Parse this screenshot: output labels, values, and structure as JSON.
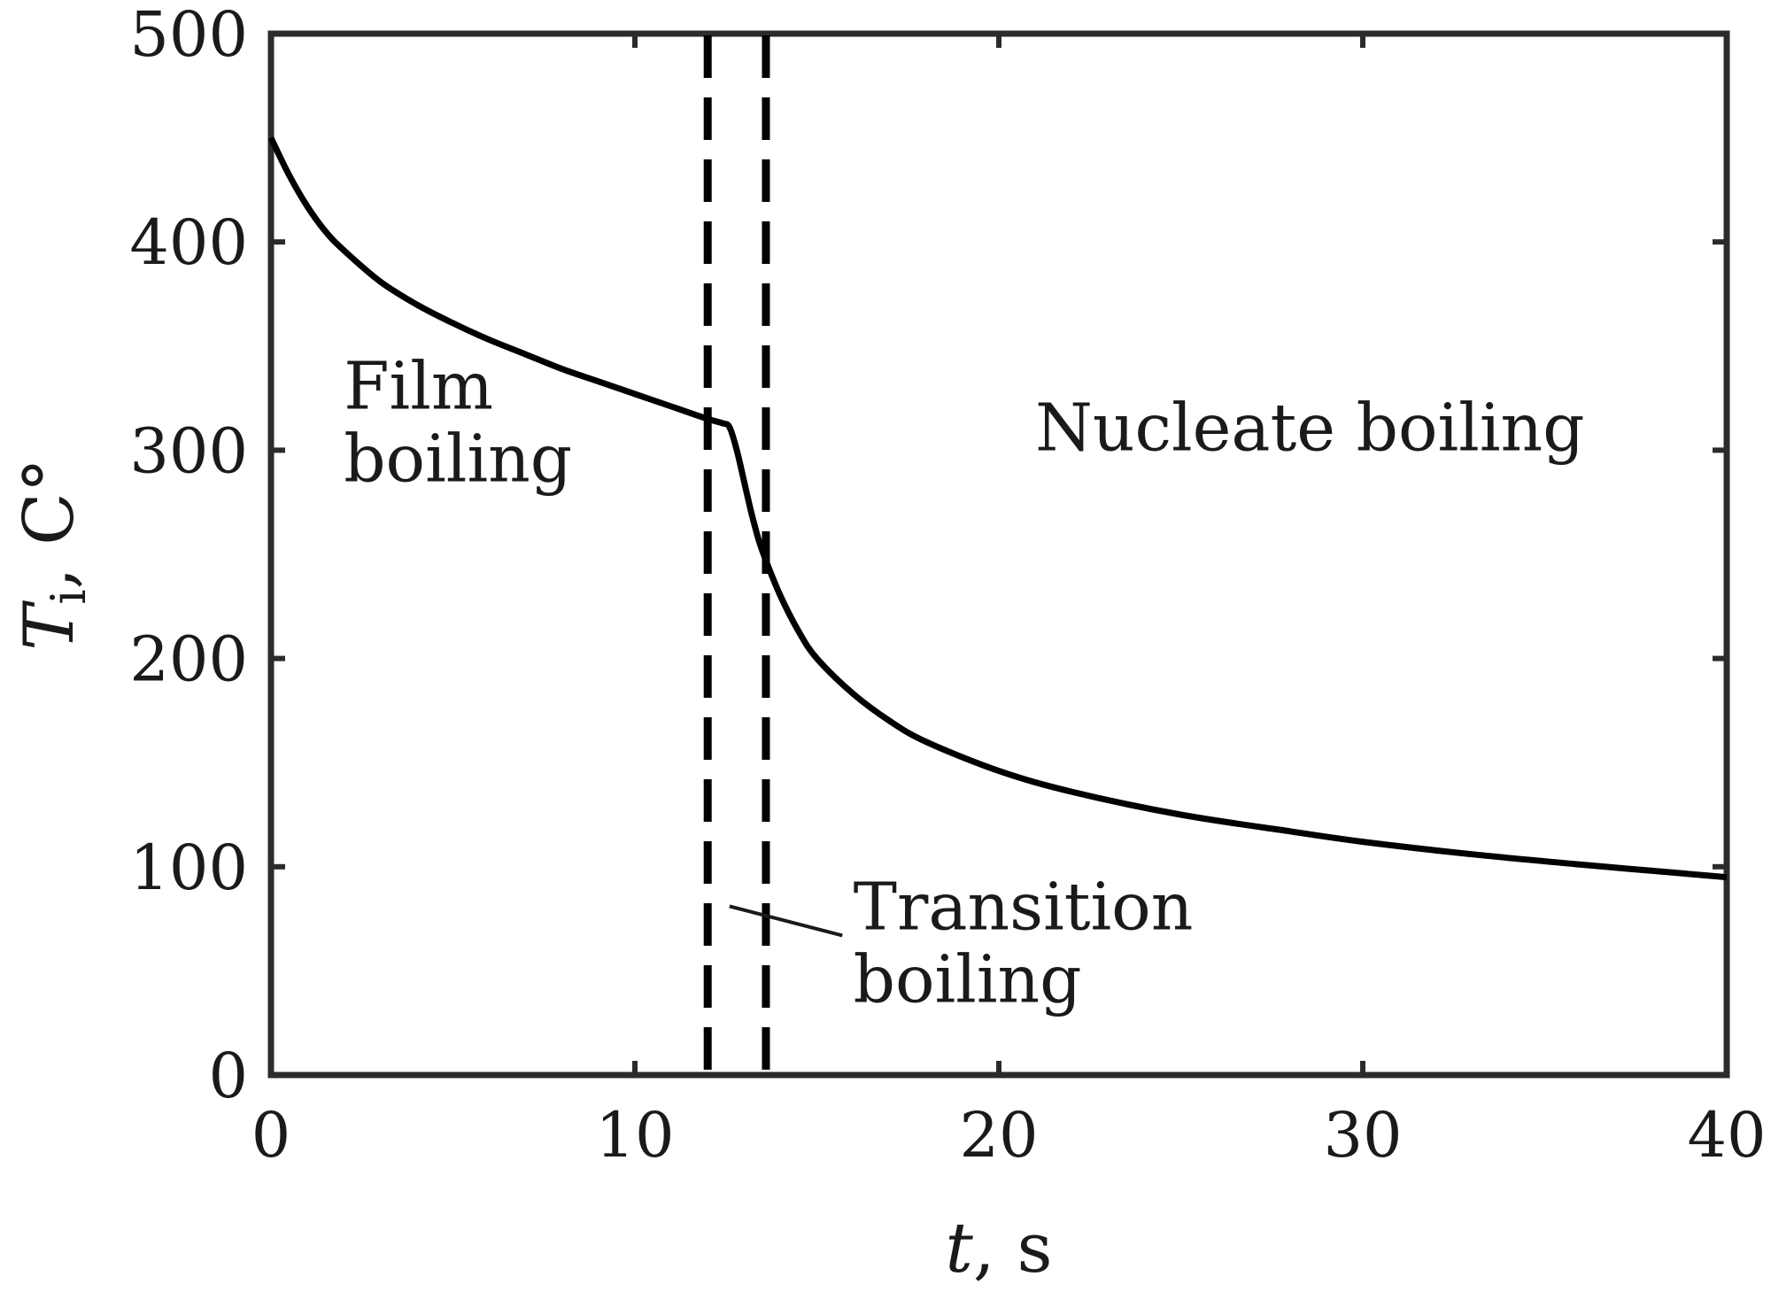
{
  "chart_data": {
    "type": "line",
    "title": "",
    "xlabel": {
      "var": "t",
      "unit": ", s"
    },
    "ylabel": {
      "var": "T",
      "sub": "i",
      "unit": ", C°"
    },
    "xlim": [
      0,
      40
    ],
    "ylim": [
      0,
      500
    ],
    "xticks": [
      0,
      10,
      20,
      30,
      40
    ],
    "yticks": [
      0,
      100,
      200,
      300,
      400,
      500
    ],
    "grid": false,
    "legend": "none",
    "line_color": "#000000",
    "series": [
      {
        "x": [
          0,
          0.5,
          1,
          1.5,
          2,
          3,
          4,
          5,
          6,
          7,
          8,
          9,
          10,
          11,
          12,
          12.4,
          12.6,
          12.8,
          13.0,
          13.2,
          13.4,
          13.6,
          14.0,
          14.5,
          15,
          16,
          17,
          18,
          20,
          22,
          25,
          28,
          30,
          33,
          36,
          38,
          40
        ],
        "y": [
          450,
          432,
          417,
          405,
          396,
          381,
          370,
          361,
          353,
          346,
          339,
          333,
          327,
          321,
          315,
          313,
          311,
          300,
          285,
          270,
          257,
          247,
          230,
          213,
          200,
          183,
          170,
          160,
          146,
          136,
          125,
          117,
          112,
          106,
          101,
          98,
          95
        ]
      }
    ],
    "vlines": [
      {
        "x": 12.0,
        "style": "dashed"
      },
      {
        "x": 13.6,
        "style": "dashed"
      }
    ],
    "annotations": [
      {
        "lines": [
          "Film",
          "boiling"
        ],
        "x": 2.0,
        "y": 320
      },
      {
        "lines": [
          "Nucleate boiling"
        ],
        "x": 21.0,
        "y": 300
      },
      {
        "lines": [
          "Transition",
          "boiling"
        ],
        "x": 16.0,
        "y": 70,
        "pointer": {
          "from": [
            15.7,
            67
          ],
          "to": [
            12.6,
            81
          ]
        }
      }
    ]
  }
}
